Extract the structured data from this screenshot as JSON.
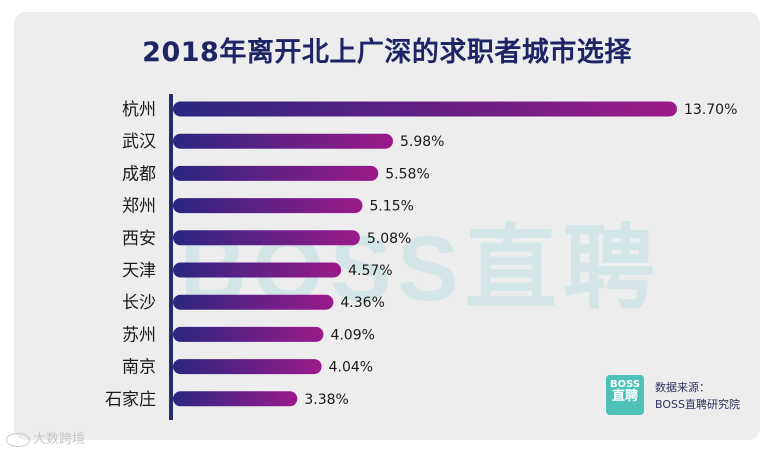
{
  "chart_data": {
    "type": "bar",
    "orientation": "horizontal",
    "title": "2018年离开北上广深的求职者城市选择",
    "categories": [
      "杭州",
      "武汉",
      "成都",
      "郑州",
      "西安",
      "天津",
      "长沙",
      "苏州",
      "南京",
      "石家庄"
    ],
    "values": [
      13.7,
      5.98,
      5.58,
      5.15,
      5.08,
      4.57,
      4.36,
      4.09,
      4.04,
      3.38
    ],
    "value_labels": [
      "13.70%",
      "5.98%",
      "5.58%",
      "5.15%",
      "5.08%",
      "4.57%",
      "4.36%",
      "4.09%",
      "4.04%",
      "3.38%"
    ],
    "unit": "%",
    "xlim": [
      0,
      13.7
    ],
    "gradient": [
      "#2a2680",
      "#9c1a8a"
    ]
  },
  "watermark": "BOSS直聘",
  "logo": {
    "line1": "BOSS",
    "line2": "直聘"
  },
  "source": {
    "label": "数据来源：",
    "name": "BOSS直聘研究院"
  },
  "weibo_mark": "大数跨境"
}
